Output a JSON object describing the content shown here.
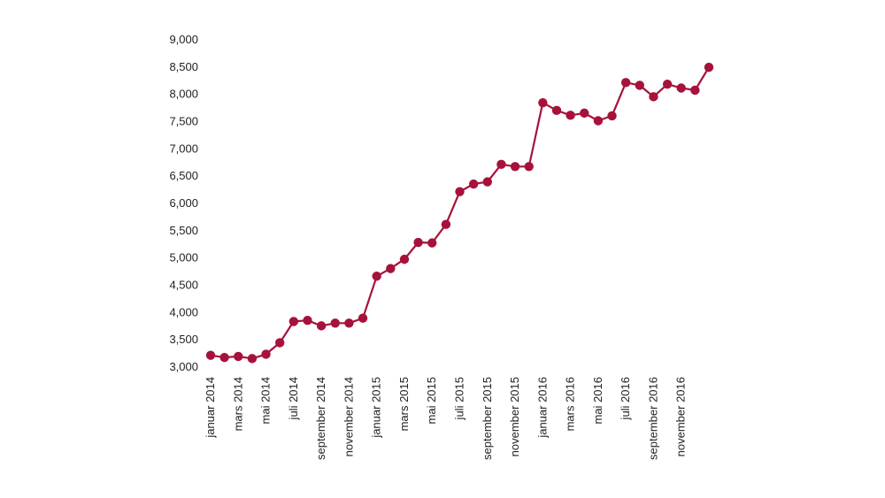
{
  "chart_data": {
    "type": "line",
    "title": "",
    "xlabel": "",
    "ylabel": "",
    "ylim": [
      3000,
      9000
    ],
    "yticks": [
      3000,
      3500,
      4000,
      4500,
      5000,
      5500,
      6000,
      6500,
      7000,
      7500,
      8000,
      8500,
      9000
    ],
    "ytick_labels": [
      "3,000",
      "3,500",
      "4,000",
      "4,500",
      "5,000",
      "5,500",
      "6,000",
      "6,500",
      "7,000",
      "7,500",
      "8,000",
      "8,500",
      "9,000"
    ],
    "xtick_labels": [
      {
        "index": 0,
        "label": "januar 2014"
      },
      {
        "index": 2,
        "label": "mars 2014"
      },
      {
        "index": 4,
        "label": "mai 2014"
      },
      {
        "index": 6,
        "label": "juli 2014"
      },
      {
        "index": 8,
        "label": "september 2014"
      },
      {
        "index": 10,
        "label": "november 2014"
      },
      {
        "index": 12,
        "label": "januar 2015"
      },
      {
        "index": 14,
        "label": "mars 2015"
      },
      {
        "index": 16,
        "label": "mai 2015"
      },
      {
        "index": 18,
        "label": "juli 2015"
      },
      {
        "index": 20,
        "label": "september 2015"
      },
      {
        "index": 22,
        "label": "november 2015"
      },
      {
        "index": 24,
        "label": "januar 2016"
      },
      {
        "index": 26,
        "label": "mars 2016"
      },
      {
        "index": 28,
        "label": "mai 2016"
      },
      {
        "index": 30,
        "label": "juli 2016"
      },
      {
        "index": 32,
        "label": "september 2016"
      },
      {
        "index": 34,
        "label": "november 2016"
      }
    ],
    "grid": false,
    "legend": "none",
    "color": "#a6123a",
    "series": [
      {
        "values": [
          3200,
          3160,
          3180,
          3140,
          3220,
          3430,
          3820,
          3840,
          3740,
          3790,
          3790,
          3880,
          4650,
          4790,
          4960,
          5270,
          5260,
          5600,
          6200,
          6340,
          6380,
          6700,
          6660,
          6660,
          7830,
          7690,
          7600,
          7640,
          7500,
          7590,
          8200,
          8150,
          7940,
          8170,
          8100,
          8060,
          8480
        ]
      }
    ]
  }
}
